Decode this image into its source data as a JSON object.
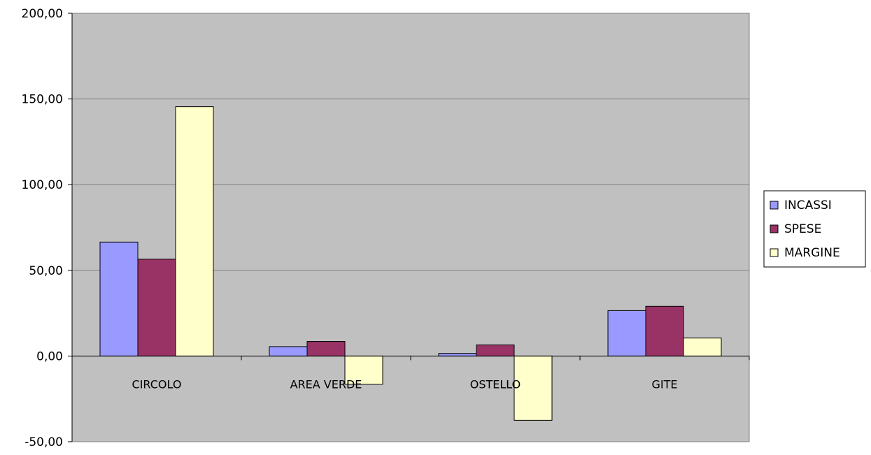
{
  "chart_data": {
    "type": "bar",
    "categories": [
      "CIRCOLO",
      "AREA VERDE",
      "OSTELLO",
      "GITE"
    ],
    "series": [
      {
        "name": "INCASSI",
        "color": "#9999FF",
        "values": [
          66.5,
          5.5,
          1.5,
          26.5
        ]
      },
      {
        "name": "SPESE",
        "color": "#993366",
        "values": [
          56.5,
          8.5,
          6.5,
          29.0
        ]
      },
      {
        "name": "MARGINE",
        "color": "#FFFFCC",
        "values": [
          145.5,
          -16.5,
          -37.5,
          10.5
        ]
      }
    ],
    "ylim": [
      -50,
      200
    ],
    "yticks": [
      "200,00",
      "150,00",
      "100,00",
      "50,00",
      "0,00",
      "-50,00"
    ],
    "ytick_values": [
      200,
      150,
      100,
      50,
      0,
      -50
    ],
    "grid": true,
    "legend_position": "right",
    "plot_background": "#C0C0C0"
  }
}
